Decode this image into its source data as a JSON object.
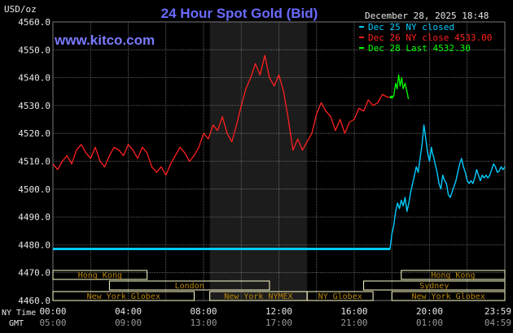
{
  "header": {
    "unit_label": "USD/oz",
    "title": "24 Hour Spot Gold (Bid)",
    "timestamp": "December 28, 2025 18:48",
    "site": "www.kitco.com"
  },
  "legend": [
    {
      "label": "Dec 25 NY closed",
      "color": "#00ccff"
    },
    {
      "label": "Dec 26 NY close 4533.00",
      "color": "#ff2020"
    },
    {
      "label": "Dec 28 Last 4532.30",
      "color": "#00ff00"
    }
  ],
  "colors": {
    "background": "#000000",
    "grid": "#777777",
    "nymex_shade": "#1c1c1c",
    "session_bar": "#ffffcc",
    "session_text": "#b8860b",
    "axis_text": "#e8e8e8",
    "title": "#6a6aff",
    "site": "#7a7aff"
  },
  "sessions": [
    {
      "label": "Hong Kong",
      "start": 0.0,
      "end": 5.0,
      "row": 0
    },
    {
      "label": "Hong Kong",
      "start": 18.5,
      "end": 24.0,
      "row": 0
    },
    {
      "label": "London",
      "start": 3.0,
      "end": 11.5,
      "row": 1
    },
    {
      "label": "Sydney",
      "start": 16.5,
      "end": 24.0,
      "row": 1
    },
    {
      "label": "New York Globex",
      "start": 0.0,
      "end": 7.5,
      "row": 2
    },
    {
      "label": "New York NYMEX",
      "start": 8.33,
      "end": 13.5,
      "row": 2
    },
    {
      "label": "NY Globex",
      "start": 13.5,
      "end": 17.0,
      "row": 2
    },
    {
      "label": "New York Globex",
      "start": 18.0,
      "end": 24.0,
      "row": 2
    }
  ],
  "bottom_axis": {
    "ny_label": "NY Time",
    "gmt_label": "GMT",
    "ny_ticks": [
      "00:00",
      "04:00",
      "08:00",
      "12:00",
      "16:00",
      "20:00",
      "23:59"
    ],
    "gmt_ticks": [
      "05:00",
      "09:00",
      "13:00",
      "17:00",
      "21:00",
      "01:00",
      "04:59"
    ]
  },
  "chart_data": {
    "type": "line",
    "title": "24 Hour Spot Gold (Bid)",
    "ylabel": "USD/oz",
    "xlabel": "NY Time",
    "x_unit": "hours (NY time)",
    "xlim": [
      0,
      24
    ],
    "ylim": [
      4460,
      4560
    ],
    "y_ticks": [
      "4560.0",
      "4550.0",
      "4540.0",
      "4530.0",
      "4520.0",
      "4510.0",
      "4500.0",
      "4490.0",
      "4480.0",
      "4470.0",
      "4460.0"
    ],
    "y_tick_values": [
      4560,
      4550,
      4540,
      4530,
      4520,
      4510,
      4500,
      4490,
      4480,
      4470,
      4460
    ],
    "x_tick_values": [
      0,
      4,
      8,
      12,
      16,
      20,
      23.98
    ],
    "nymex_session": [
      8.33,
      13.5
    ],
    "grid": true,
    "series": [
      {
        "name": "Dec 25 NY closed",
        "color": "#00ccff",
        "x": [
          0,
          17.9,
          17.92,
          18.0,
          18.1,
          18.2,
          18.3,
          18.4,
          18.5,
          18.6,
          18.7,
          18.8,
          18.9,
          19.0,
          19.1,
          19.2,
          19.3,
          19.4,
          19.5,
          19.6,
          19.7,
          19.8,
          19.9,
          20.0,
          20.1,
          20.15,
          20.2,
          20.3,
          20.4,
          20.5,
          20.6,
          20.7,
          20.8,
          20.9,
          21.0,
          21.1,
          21.2,
          21.3,
          21.4,
          21.5,
          21.6,
          21.7,
          21.8,
          21.9,
          22.0,
          22.1,
          22.2,
          22.3,
          22.4,
          22.5,
          22.6,
          22.7,
          22.8,
          22.9,
          23.0,
          23.1,
          23.2,
          23.3,
          23.4,
          23.5,
          23.6,
          23.7,
          23.8,
          23.9,
          24.0
        ],
        "values": [
          4478.5,
          4478.5,
          4479.5,
          4484.0,
          4487.0,
          4492.0,
          4495.0,
          4493.0,
          4496.0,
          4494.0,
          4497.0,
          4492.0,
          4495.0,
          4499.0,
          4502.0,
          4505.0,
          4508.0,
          4506.0,
          4511.0,
          4516.0,
          4523.0,
          4518.0,
          4513.0,
          4510.0,
          4515.0,
          4513.0,
          4512.0,
          4509.0,
          4506.0,
          4502.0,
          4500.0,
          4505.0,
          4503.0,
          4502.0,
          4498.0,
          4497.0,
          4499.0,
          4501.0,
          4503.0,
          4506.0,
          4509.0,
          4511.0,
          4508.0,
          4506.0,
          4503.0,
          4502.0,
          4503.0,
          4502.0,
          4504.0,
          4507.0,
          4505.0,
          4503.0,
          4505.0,
          4504.0,
          4505.0,
          4504.0,
          4505.0,
          4507.0,
          4509.0,
          4508.0,
          4506.0,
          4506.5,
          4508.0,
          4507.0,
          4508.0
        ]
      },
      {
        "name": "Dec 26 NY close 4533.00",
        "color": "#ff2020",
        "x": [
          0,
          0.25,
          0.5,
          0.75,
          1.0,
          1.25,
          1.5,
          1.75,
          2.0,
          2.25,
          2.5,
          2.75,
          3.0,
          3.25,
          3.5,
          3.75,
          4.0,
          4.25,
          4.5,
          4.75,
          5.0,
          5.25,
          5.5,
          5.75,
          6.0,
          6.25,
          6.5,
          6.75,
          7.0,
          7.25,
          7.5,
          7.75,
          8.0,
          8.25,
          8.5,
          8.75,
          9.0,
          9.25,
          9.5,
          9.75,
          10.0,
          10.25,
          10.5,
          10.75,
          11.0,
          11.25,
          11.5,
          11.75,
          12.0,
          12.25,
          12.5,
          12.75,
          13.0,
          13.25,
          13.5,
          13.75,
          14.0,
          14.25,
          14.5,
          14.75,
          15.0,
          15.25,
          15.5,
          15.75,
          16.0,
          16.25,
          16.5,
          16.75,
          17.0,
          17.25,
          17.5,
          17.75,
          17.9
        ],
        "values": [
          4509.0,
          4507.0,
          4510.0,
          4512.0,
          4509.0,
          4514.0,
          4516.0,
          4513.0,
          4511.0,
          4515.0,
          4510.0,
          4508.0,
          4512.0,
          4515.0,
          4514.0,
          4512.0,
          4516.0,
          4514.0,
          4511.0,
          4515.0,
          4513.0,
          4508.0,
          4506.0,
          4508.0,
          4505.0,
          4509.0,
          4512.0,
          4515.0,
          4513.0,
          4510.0,
          4512.0,
          4515.0,
          4520.0,
          4518.0,
          4523.0,
          4521.0,
          4526.0,
          4520.0,
          4517.0,
          4523.0,
          4530.0,
          4536.0,
          4540.0,
          4545.0,
          4541.0,
          4548.0,
          4540.0,
          4537.0,
          4541.0,
          4535.0,
          4525.0,
          4514.0,
          4518.0,
          4514.0,
          4517.0,
          4520.0,
          4527.0,
          4531.0,
          4528.0,
          4526.0,
          4521.0,
          4525.0,
          4520.0,
          4524.0,
          4525.0,
          4529.0,
          4528.0,
          4532.0,
          4530.0,
          4531.0,
          4534.0,
          4533.0,
          4533.0
        ]
      },
      {
        "name": "Dec 28 Last 4532.30",
        "color": "#00ff00",
        "x": [
          17.9,
          18.05,
          18.1,
          18.2,
          18.28,
          18.36,
          18.44,
          18.52,
          18.6,
          18.7,
          18.8,
          18.88
        ],
        "values": [
          4533.0,
          4533.0,
          4533.5,
          4538.0,
          4536.0,
          4541.0,
          4537.0,
          4540.0,
          4536.0,
          4538.0,
          4535.0,
          4532.3
        ]
      }
    ]
  }
}
